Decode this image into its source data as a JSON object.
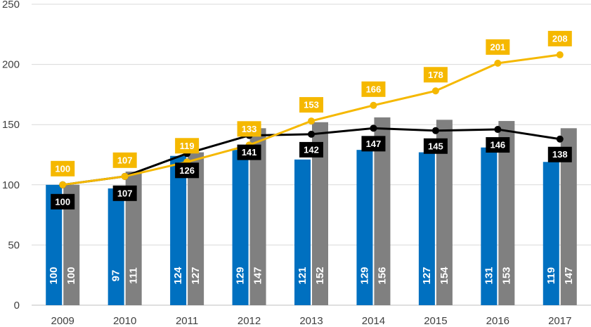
{
  "chart_data": {
    "type": "bar+line",
    "categories": [
      "2009",
      "2010",
      "2011",
      "2012",
      "2013",
      "2014",
      "2015",
      "2016",
      "2017"
    ],
    "ylim": [
      0,
      250
    ],
    "yticks": [
      0,
      50,
      100,
      150,
      200,
      250
    ],
    "grid": true,
    "series": [
      {
        "name": "blue bars",
        "kind": "bar",
        "color": "#0070C0",
        "values": [
          100,
          97,
          124,
          129,
          121,
          129,
          127,
          131,
          119
        ]
      },
      {
        "name": "gray bars",
        "kind": "bar",
        "color": "#808080",
        "values": [
          100,
          111,
          127,
          147,
          152,
          156,
          154,
          153,
          147
        ]
      },
      {
        "name": "black line",
        "kind": "line",
        "color": "#000000",
        "values": [
          100,
          107,
          126,
          141,
          142,
          147,
          145,
          146,
          138
        ]
      },
      {
        "name": "yellow line",
        "kind": "line",
        "color": "#F5B800",
        "values": [
          100,
          107,
          119,
          133,
          153,
          166,
          178,
          201,
          208
        ]
      }
    ]
  }
}
